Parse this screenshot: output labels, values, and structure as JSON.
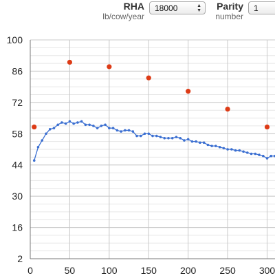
{
  "controls": {
    "rha": {
      "label": "RHA",
      "unit": "lb/cow/year",
      "value": "18000"
    },
    "parity": {
      "label": "Parity",
      "unit": "number",
      "value": "1"
    }
  },
  "icons": {
    "select_arrows": "up-down-chevron-icon"
  },
  "colors": {
    "blue_series": "#3b6fd1",
    "red_series": "#dd3b16",
    "grid_minor": "#e6e6e6",
    "grid_major": "#c8c8c8",
    "axis": "#7a7a7a"
  },
  "chart_data": {
    "type": "scatter",
    "title": "",
    "xlabel": "",
    "ylabel": "",
    "xlim": [
      0,
      310
    ],
    "ylim": [
      2,
      100
    ],
    "xticks": [
      0,
      50,
      100,
      150,
      200,
      250,
      300
    ],
    "yticks": [
      2,
      16,
      30,
      44,
      58,
      72,
      86,
      100
    ],
    "grid": true,
    "series": [
      {
        "style": "line-with-markers",
        "color": "#3b6fd1",
        "points": [
          [
            5,
            46
          ],
          [
            10,
            52
          ],
          [
            15,
            55
          ],
          [
            20,
            58
          ],
          [
            25,
            60
          ],
          [
            30,
            60.5
          ],
          [
            35,
            62
          ],
          [
            40,
            63
          ],
          [
            45,
            62.5
          ],
          [
            50,
            63.5
          ],
          [
            55,
            62.5
          ],
          [
            60,
            63
          ],
          [
            65,
            63.5
          ],
          [
            70,
            62
          ],
          [
            75,
            62
          ],
          [
            80,
            61.5
          ],
          [
            85,
            60.5
          ],
          [
            90,
            61.5
          ],
          [
            95,
            62
          ],
          [
            100,
            60.5
          ],
          [
            105,
            60.5
          ],
          [
            110,
            59.5
          ],
          [
            115,
            59
          ],
          [
            120,
            59.5
          ],
          [
            125,
            59.5
          ],
          [
            130,
            59
          ],
          [
            135,
            57
          ],
          [
            140,
            57
          ],
          [
            145,
            58
          ],
          [
            150,
            58
          ],
          [
            155,
            57
          ],
          [
            160,
            57
          ],
          [
            165,
            56.5
          ],
          [
            170,
            56
          ],
          [
            175,
            56
          ],
          [
            180,
            56
          ],
          [
            185,
            56.5
          ],
          [
            190,
            56
          ],
          [
            195,
            55
          ],
          [
            200,
            55.5
          ],
          [
            205,
            54.5
          ],
          [
            210,
            54.5
          ],
          [
            215,
            54
          ],
          [
            220,
            54
          ],
          [
            225,
            53
          ],
          [
            230,
            52.5
          ],
          [
            235,
            52.5
          ],
          [
            240,
            52
          ],
          [
            245,
            51.5
          ],
          [
            250,
            51
          ],
          [
            255,
            51
          ],
          [
            260,
            50.5
          ],
          [
            265,
            50.5
          ],
          [
            270,
            50
          ],
          [
            275,
            49.5
          ],
          [
            280,
            49
          ],
          [
            285,
            49
          ],
          [
            290,
            48.5
          ],
          [
            295,
            48
          ],
          [
            300,
            47
          ],
          [
            305,
            48
          ],
          [
            310,
            48
          ]
        ]
      },
      {
        "style": "markers",
        "color": "#dd3b16",
        "points": [
          [
            5,
            61
          ],
          [
            50,
            90
          ],
          [
            100,
            88
          ],
          [
            150,
            83
          ],
          [
            200,
            77
          ],
          [
            250,
            69
          ],
          [
            300,
            61
          ]
        ]
      }
    ]
  }
}
